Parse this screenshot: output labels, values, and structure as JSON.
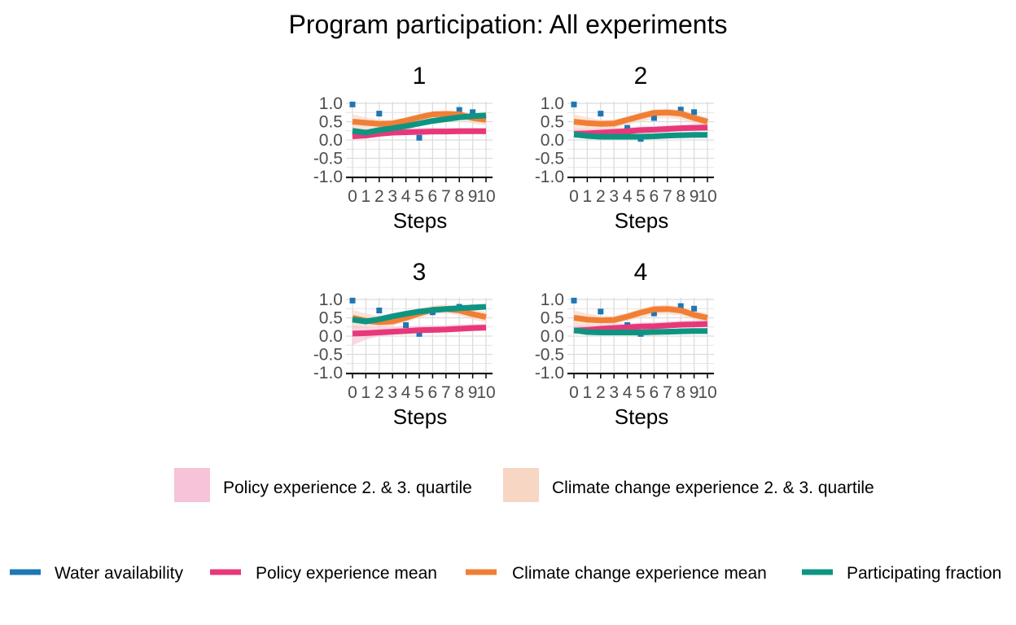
{
  "chart_data": {
    "type": "line",
    "title": "Program participation: All experiments",
    "xlabel": "Steps",
    "ylabel": "",
    "xlim": [
      0,
      10
    ],
    "ylim": [
      -1.0,
      1.0
    ],
    "x_ticks": [
      "0",
      "1",
      "2",
      "3",
      "4",
      "5",
      "6",
      "7",
      "8",
      "9",
      "10"
    ],
    "y_ticks": [
      "-1.0",
      "-0.5",
      "0.0",
      "0.5",
      "1.0"
    ],
    "grid": true,
    "colors": {
      "water": "#1f77b4",
      "policy": "#e8387a",
      "climate": "#f07f35",
      "participation": "#0e9582",
      "policy_band": "#f6c3d8",
      "climate_band": "#f7d6c4",
      "grid": "#dcdcdc",
      "tick_text": "#4d4d4d"
    },
    "legend_bands": [
      {
        "key": "policy_band",
        "label": "Policy experience 2. & 3. quartile"
      },
      {
        "key": "climate_band",
        "label": "Climate change experience 2. & 3. quartile"
      }
    ],
    "legend_lines": [
      {
        "key": "water",
        "label": "Water availability"
      },
      {
        "key": "policy",
        "label": "Policy experience mean"
      },
      {
        "key": "climate",
        "label": "Climate change experience mean"
      },
      {
        "key": "participation",
        "label": "Participating fraction"
      }
    ],
    "panels": [
      {
        "title": "1",
        "x": [
          0,
          1,
          2,
          3,
          4,
          5,
          6,
          7,
          8,
          9,
          10
        ],
        "water": [
          0.97,
          null,
          0.72,
          null,
          null,
          0.06,
          null,
          null,
          0.82,
          0.76,
          null
        ],
        "policy": [
          0.1,
          0.12,
          0.17,
          0.2,
          0.21,
          0.22,
          0.23,
          0.23,
          0.24,
          0.24,
          0.24
        ],
        "climate": [
          0.5,
          0.47,
          0.44,
          0.45,
          0.53,
          0.62,
          0.7,
          0.71,
          0.7,
          0.6,
          0.55
        ],
        "participation": [
          0.25,
          0.2,
          0.27,
          0.32,
          0.38,
          0.45,
          0.52,
          0.57,
          0.62,
          0.65,
          0.67
        ],
        "policy_band": [
          [
            0.05,
            0.28
          ],
          [
            0.07,
            0.28
          ],
          [
            0.1,
            0.3
          ],
          [
            0.12,
            0.32
          ],
          [
            0.14,
            0.33
          ],
          [
            0.15,
            0.33
          ],
          [
            0.16,
            0.33
          ],
          [
            0.16,
            0.33
          ],
          [
            0.16,
            0.33
          ],
          [
            0.16,
            0.33
          ],
          [
            0.16,
            0.33
          ]
        ],
        "climate_band": [
          [
            0.2,
            0.7
          ],
          [
            0.25,
            0.62
          ],
          [
            0.3,
            0.55
          ],
          [
            0.33,
            0.55
          ],
          [
            0.4,
            0.62
          ],
          [
            0.48,
            0.7
          ],
          [
            0.55,
            0.78
          ],
          [
            0.58,
            0.8
          ],
          [
            0.55,
            0.78
          ],
          [
            0.45,
            0.72
          ],
          [
            0.4,
            0.68
          ]
        ]
      },
      {
        "title": "2",
        "x": [
          0,
          1,
          2,
          3,
          4,
          5,
          6,
          7,
          8,
          9,
          10
        ],
        "water": [
          0.97,
          null,
          0.72,
          null,
          0.33,
          0.03,
          0.6,
          null,
          0.83,
          0.76,
          null
        ],
        "policy": [
          0.17,
          0.18,
          0.2,
          0.22,
          0.24,
          0.27,
          0.28,
          0.3,
          0.32,
          0.33,
          0.34
        ],
        "climate": [
          0.5,
          0.46,
          0.44,
          0.45,
          0.55,
          0.65,
          0.74,
          0.75,
          0.72,
          0.6,
          0.5
        ],
        "participation": [
          0.15,
          0.11,
          0.09,
          0.09,
          0.09,
          0.09,
          0.1,
          0.12,
          0.13,
          0.14,
          0.14
        ],
        "policy_band": [
          [
            0.08,
            0.3
          ],
          [
            0.1,
            0.3
          ],
          [
            0.12,
            0.32
          ],
          [
            0.14,
            0.33
          ],
          [
            0.16,
            0.35
          ],
          [
            0.18,
            0.37
          ],
          [
            0.2,
            0.38
          ],
          [
            0.22,
            0.4
          ],
          [
            0.24,
            0.42
          ],
          [
            0.25,
            0.43
          ],
          [
            0.26,
            0.44
          ]
        ],
        "climate_band": [
          [
            0.2,
            0.7
          ],
          [
            0.25,
            0.62
          ],
          [
            0.3,
            0.55
          ],
          [
            0.33,
            0.56
          ],
          [
            0.42,
            0.65
          ],
          [
            0.5,
            0.75
          ],
          [
            0.58,
            0.84
          ],
          [
            0.6,
            0.86
          ],
          [
            0.56,
            0.82
          ],
          [
            0.45,
            0.72
          ],
          [
            0.38,
            0.62
          ]
        ]
      },
      {
        "title": "3",
        "x": [
          0,
          1,
          2,
          3,
          4,
          5,
          6,
          7,
          8,
          9,
          10
        ],
        "water": [
          0.97,
          null,
          0.7,
          null,
          0.3,
          0.06,
          0.65,
          null,
          0.8,
          0.78,
          null
        ],
        "policy": [
          0.07,
          0.08,
          0.1,
          0.12,
          0.14,
          0.16,
          0.17,
          0.18,
          0.2,
          0.22,
          0.23
        ],
        "climate": [
          0.5,
          0.42,
          0.38,
          0.4,
          0.5,
          0.62,
          0.72,
          0.74,
          0.7,
          0.6,
          0.52
        ],
        "participation": [
          0.45,
          0.4,
          0.46,
          0.54,
          0.61,
          0.67,
          0.71,
          0.74,
          0.76,
          0.78,
          0.8
        ],
        "policy_band": [
          [
            -0.25,
            0.3
          ],
          [
            -0.1,
            0.25
          ],
          [
            0.0,
            0.25
          ],
          [
            0.04,
            0.26
          ],
          [
            0.06,
            0.27
          ],
          [
            0.08,
            0.28
          ],
          [
            0.09,
            0.29
          ],
          [
            0.1,
            0.3
          ],
          [
            0.12,
            0.32
          ],
          [
            0.14,
            0.33
          ],
          [
            0.15,
            0.34
          ]
        ],
        "climate_band": [
          [
            0.2,
            0.72
          ],
          [
            0.22,
            0.62
          ],
          [
            0.25,
            0.55
          ],
          [
            0.28,
            0.55
          ],
          [
            0.38,
            0.64
          ],
          [
            0.5,
            0.75
          ],
          [
            0.6,
            0.84
          ],
          [
            0.62,
            0.86
          ],
          [
            0.57,
            0.82
          ],
          [
            0.45,
            0.74
          ],
          [
            0.38,
            0.66
          ]
        ]
      },
      {
        "title": "4",
        "x": [
          0,
          1,
          2,
          3,
          4,
          5,
          6,
          7,
          8,
          9,
          10
        ],
        "water": [
          0.97,
          null,
          0.67,
          null,
          0.3,
          0.06,
          0.62,
          null,
          0.82,
          0.75,
          null
        ],
        "policy": [
          0.15,
          0.17,
          0.2,
          0.22,
          0.24,
          0.26,
          0.27,
          0.29,
          0.31,
          0.32,
          0.33
        ],
        "climate": [
          0.5,
          0.45,
          0.43,
          0.44,
          0.53,
          0.64,
          0.73,
          0.74,
          0.7,
          0.58,
          0.5
        ],
        "participation": [
          0.16,
          0.11,
          0.1,
          0.1,
          0.1,
          0.1,
          0.11,
          0.12,
          0.13,
          0.14,
          0.14
        ],
        "policy_band": [
          [
            0.06,
            0.28
          ],
          [
            0.09,
            0.29
          ],
          [
            0.12,
            0.31
          ],
          [
            0.14,
            0.33
          ],
          [
            0.16,
            0.35
          ],
          [
            0.18,
            0.37
          ],
          [
            0.19,
            0.38
          ],
          [
            0.21,
            0.4
          ],
          [
            0.23,
            0.42
          ],
          [
            0.24,
            0.43
          ],
          [
            0.25,
            0.44
          ]
        ],
        "climate_band": [
          [
            0.2,
            0.7
          ],
          [
            0.26,
            0.62
          ],
          [
            0.3,
            0.55
          ],
          [
            0.33,
            0.55
          ],
          [
            0.42,
            0.64
          ],
          [
            0.5,
            0.75
          ],
          [
            0.58,
            0.84
          ],
          [
            0.6,
            0.86
          ],
          [
            0.56,
            0.8
          ],
          [
            0.45,
            0.7
          ],
          [
            0.38,
            0.62
          ]
        ]
      }
    ]
  }
}
